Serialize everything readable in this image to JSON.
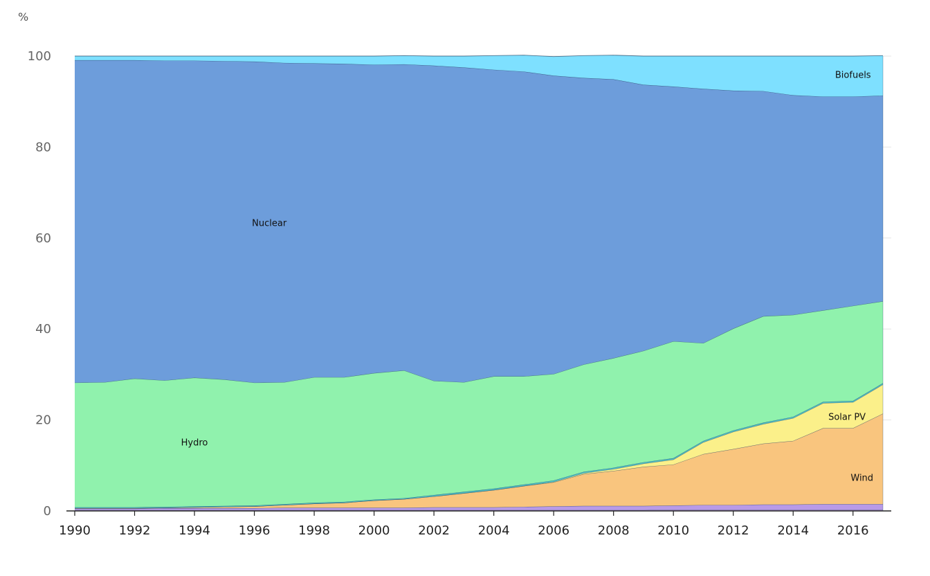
{
  "chart_data": {
    "type": "area",
    "stacked": true,
    "ylabel": "%",
    "xlabel": "",
    "ylim": [
      0,
      100
    ],
    "xlim": [
      1990,
      2017
    ],
    "yticks": [
      0,
      20,
      40,
      60,
      80,
      100
    ],
    "xticks": [
      1990,
      1992,
      1994,
      1996,
      1998,
      2000,
      2002,
      2004,
      2006,
      2008,
      2010,
      2012,
      2014,
      2016
    ],
    "grid": "horizontal",
    "legend": "inline labels",
    "x": [
      1990,
      1991,
      1992,
      1993,
      1994,
      1995,
      1996,
      1997,
      1998,
      1999,
      2000,
      2001,
      2002,
      2003,
      2004,
      2005,
      2006,
      2007,
      2008,
      2009,
      2010,
      2011,
      2012,
      2013,
      2014,
      2015,
      2016,
      2017
    ],
    "series": [
      {
        "id": "bottom",
        "label": "",
        "color": "#cfa8ee",
        "values": [
          0.2,
          0.2,
          0.2,
          0.2,
          0.2,
          0.2,
          0.2,
          0.2,
          0.2,
          0.2,
          0.2,
          0.2,
          0.2,
          0.2,
          0.2,
          0.2,
          0.2,
          0.2,
          0.2,
          0.2,
          0.3,
          0.3,
          0.3,
          0.3,
          0.3,
          0.3,
          0.3,
          0.3
        ]
      },
      {
        "id": "purple",
        "label": "",
        "color": "#b89ae8",
        "values": [
          0.3,
          0.3,
          0.3,
          0.4,
          0.4,
          0.4,
          0.4,
          0.5,
          0.5,
          0.5,
          0.5,
          0.5,
          0.6,
          0.6,
          0.6,
          0.7,
          0.8,
          0.9,
          0.9,
          0.9,
          0.9,
          1.0,
          1.0,
          1.1,
          1.1,
          1.2,
          1.2,
          1.2
        ]
      },
      {
        "id": "wind",
        "label": "Wind",
        "color": "#f9c57e",
        "values": [
          0.1,
          0.1,
          0.1,
          0.1,
          0.2,
          0.3,
          0.4,
          0.6,
          0.9,
          1.1,
          1.6,
          1.9,
          2.4,
          3.1,
          3.8,
          4.6,
          5.3,
          7.0,
          7.7,
          8.6,
          9.0,
          11.2,
          12.3,
          13.4,
          14.0,
          16.7,
          16.7,
          19.9
        ]
      },
      {
        "id": "solar",
        "label": "Solar PV",
        "color": "#fbf08a",
        "values": [
          0.0,
          0.0,
          0.0,
          0.0,
          0.0,
          0.0,
          0.0,
          0.0,
          0.0,
          0.0,
          0.0,
          0.0,
          0.0,
          0.0,
          0.0,
          0.0,
          0.1,
          0.2,
          0.4,
          0.7,
          1.1,
          2.6,
          3.8,
          4.3,
          5.0,
          5.5,
          5.7,
          6.4
        ]
      },
      {
        "id": "other",
        "label": "",
        "color": "#4ec2c9",
        "values": [
          0.2,
          0.2,
          0.2,
          0.2,
          0.2,
          0.2,
          0.2,
          0.2,
          0.2,
          0.2,
          0.2,
          0.2,
          0.3,
          0.3,
          0.3,
          0.3,
          0.3,
          0.3,
          0.3,
          0.3,
          0.3,
          0.3,
          0.3,
          0.3,
          0.3,
          0.3,
          0.3,
          0.3
        ]
      },
      {
        "id": "hydro",
        "label": "Hydro",
        "color": "#90f2ad",
        "values": [
          27.4,
          27.5,
          28.3,
          27.8,
          28.3,
          27.8,
          27.0,
          26.8,
          27.6,
          27.4,
          27.8,
          28.1,
          25.1,
          24.1,
          24.7,
          23.8,
          23.4,
          23.6,
          24.1,
          24.5,
          25.7,
          21.5,
          22.4,
          23.4,
          22.4,
          20.1,
          20.9,
          18.0
        ]
      },
      {
        "id": "nuclear",
        "label": "Nuclear",
        "color": "#6d9ddb",
        "values": [
          70.9,
          70.8,
          70.0,
          70.3,
          69.7,
          70.0,
          70.6,
          70.2,
          69.0,
          68.9,
          67.8,
          67.3,
          69.3,
          69.2,
          67.4,
          67.0,
          65.6,
          63.0,
          61.3,
          58.5,
          56.0,
          55.9,
          52.3,
          49.5,
          48.3,
          47.0,
          46.0,
          45.2
        ]
      },
      {
        "id": "biofuels",
        "label": "Biofuels",
        "color": "#7ee0ff",
        "values": [
          0.9,
          0.9,
          0.9,
          1.0,
          1.0,
          1.1,
          1.2,
          1.5,
          1.6,
          1.7,
          1.9,
          1.9,
          2.1,
          2.5,
          3.1,
          3.6,
          4.2,
          4.9,
          5.3,
          6.3,
          6.7,
          7.2,
          7.6,
          7.7,
          8.6,
          8.9,
          8.9,
          8.8
        ]
      }
    ]
  }
}
